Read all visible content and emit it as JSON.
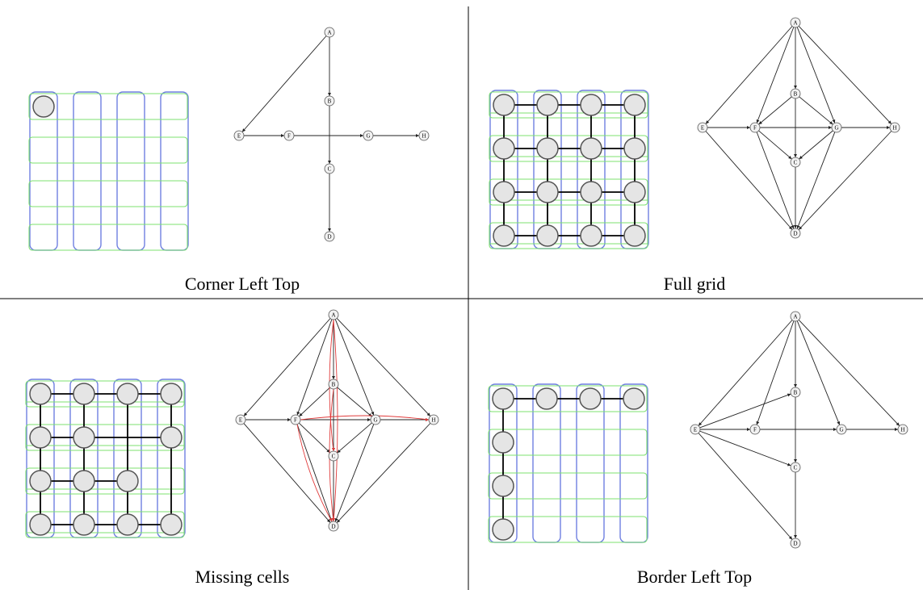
{
  "panels": [
    {
      "caption": "Corner Left Top",
      "grid": {
        "cells": [
          [
            0,
            0
          ]
        ],
        "h": [],
        "v": []
      },
      "graph": {
        "edges": [
          [
            "A",
            "E"
          ],
          [
            "E",
            "F"
          ],
          [
            "F",
            "G"
          ],
          [
            "G",
            "H"
          ],
          [
            "A",
            "B"
          ],
          [
            "B",
            "C"
          ],
          [
            "C",
            "D"
          ]
        ],
        "red": []
      }
    },
    {
      "caption": "Full grid",
      "grid": {
        "cells": [
          [
            0,
            0
          ],
          [
            0,
            1
          ],
          [
            0,
            2
          ],
          [
            0,
            3
          ],
          [
            1,
            0
          ],
          [
            1,
            1
          ],
          [
            1,
            2
          ],
          [
            1,
            3
          ],
          [
            2,
            0
          ],
          [
            2,
            1
          ],
          [
            2,
            2
          ],
          [
            2,
            3
          ],
          [
            3,
            0
          ],
          [
            3,
            1
          ],
          [
            3,
            2
          ],
          [
            3,
            3
          ]
        ],
        "h": [
          [
            0,
            0
          ],
          [
            0,
            1
          ],
          [
            0,
            2
          ],
          [
            1,
            0
          ],
          [
            1,
            1
          ],
          [
            1,
            2
          ],
          [
            2,
            0
          ],
          [
            2,
            1
          ],
          [
            2,
            2
          ],
          [
            3,
            0
          ],
          [
            3,
            1
          ],
          [
            3,
            2
          ]
        ],
        "v": [
          [
            0,
            0
          ],
          [
            1,
            0
          ],
          [
            2,
            0
          ],
          [
            0,
            1
          ],
          [
            1,
            1
          ],
          [
            2,
            1
          ],
          [
            0,
            2
          ],
          [
            1,
            2
          ],
          [
            2,
            2
          ],
          [
            0,
            3
          ],
          [
            1,
            3
          ],
          [
            2,
            3
          ]
        ]
      },
      "graph": {
        "edges": [
          [
            "A",
            "B"
          ],
          [
            "A",
            "E"
          ],
          [
            "A",
            "F"
          ],
          [
            "A",
            "G"
          ],
          [
            "A",
            "H"
          ],
          [
            "B",
            "F"
          ],
          [
            "B",
            "G"
          ],
          [
            "B",
            "C"
          ],
          [
            "E",
            "F"
          ],
          [
            "F",
            "G"
          ],
          [
            "G",
            "H"
          ],
          [
            "E",
            "D"
          ],
          [
            "F",
            "D"
          ],
          [
            "G",
            "D"
          ],
          [
            "H",
            "D"
          ],
          [
            "C",
            "D"
          ],
          [
            "F",
            "C"
          ],
          [
            "G",
            "C"
          ]
        ],
        "red": []
      }
    },
    {
      "caption": "Missing cells",
      "grid": {
        "cells": [
          [
            0,
            0
          ],
          [
            0,
            1
          ],
          [
            0,
            2
          ],
          [
            0,
            3
          ],
          [
            1,
            0
          ],
          [
            1,
            1
          ],
          [
            1,
            3
          ],
          [
            2,
            0
          ],
          [
            2,
            1
          ],
          [
            2,
            2
          ],
          [
            3,
            0
          ],
          [
            3,
            1
          ],
          [
            3,
            2
          ],
          [
            3,
            3
          ]
        ],
        "h": [
          [
            0,
            0
          ],
          [
            0,
            1
          ],
          [
            0,
            2
          ],
          [
            1,
            0
          ],
          [
            1,
            1
          ],
          [
            1,
            2
          ],
          [
            2,
            0
          ],
          [
            2,
            1
          ],
          [
            3,
            0
          ],
          [
            3,
            1
          ],
          [
            3,
            2
          ]
        ],
        "v": [
          [
            0,
            0
          ],
          [
            1,
            0
          ],
          [
            2,
            0
          ],
          [
            0,
            1
          ],
          [
            1,
            1
          ],
          [
            2,
            1
          ],
          [
            0,
            2
          ],
          [
            1,
            2
          ],
          [
            2,
            2
          ],
          [
            0,
            3
          ],
          [
            1,
            3
          ],
          [
            2,
            3
          ]
        ]
      },
      "graph": {
        "edges": [
          [
            "A",
            "B"
          ],
          [
            "A",
            "E"
          ],
          [
            "A",
            "F"
          ],
          [
            "A",
            "G"
          ],
          [
            "A",
            "H"
          ],
          [
            "B",
            "F"
          ],
          [
            "B",
            "G"
          ],
          [
            "B",
            "C"
          ],
          [
            "E",
            "F"
          ],
          [
            "F",
            "G"
          ],
          [
            "G",
            "H"
          ],
          [
            "E",
            "D"
          ],
          [
            "F",
            "D"
          ],
          [
            "G",
            "D"
          ],
          [
            "H",
            "D"
          ],
          [
            "C",
            "D"
          ],
          [
            "F",
            "C"
          ],
          [
            "G",
            "C"
          ]
        ],
        "red": [
          [
            "A",
            "C"
          ],
          [
            "A",
            "D"
          ],
          [
            "B",
            "D"
          ],
          [
            "F",
            "H"
          ],
          [
            "F",
            "D"
          ]
        ]
      }
    },
    {
      "caption": "Border Left Top",
      "grid": {
        "cells": [
          [
            0,
            0
          ],
          [
            0,
            1
          ],
          [
            0,
            2
          ],
          [
            0,
            3
          ],
          [
            1,
            0
          ],
          [
            2,
            0
          ],
          [
            3,
            0
          ]
        ],
        "h": [
          [
            0,
            0
          ],
          [
            0,
            1
          ],
          [
            0,
            2
          ]
        ],
        "v": [
          [
            0,
            0
          ],
          [
            1,
            0
          ],
          [
            2,
            0
          ]
        ]
      },
      "graph": {
        "edges": [
          [
            "A",
            "E"
          ],
          [
            "A",
            "F"
          ],
          [
            "A",
            "G"
          ],
          [
            "A",
            "H"
          ],
          [
            "A",
            "B"
          ],
          [
            "B",
            "C"
          ],
          [
            "E",
            "F"
          ],
          [
            "F",
            "G"
          ],
          [
            "G",
            "H"
          ],
          [
            "E",
            "C"
          ],
          [
            "E",
            "D"
          ],
          [
            "C",
            "D"
          ],
          [
            "E",
            "B"
          ]
        ],
        "red": []
      }
    }
  ]
}
